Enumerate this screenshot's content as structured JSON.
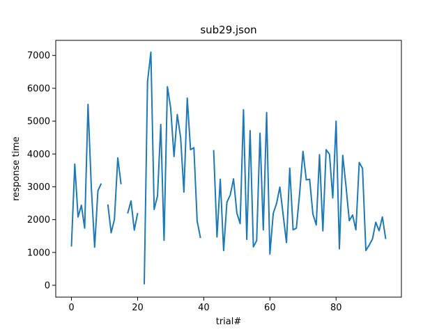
{
  "chart_data": {
    "type": "line",
    "title": "sub29.json",
    "xlabel": "trial#",
    "ylabel": "response time",
    "xlim": [
      -4.75,
      99.75
    ],
    "ylim": [
      -360,
      7460
    ],
    "xticks": [
      0,
      20,
      40,
      60,
      80
    ],
    "yticks": [
      0,
      1000,
      2000,
      3000,
      4000,
      5000,
      6000,
      7000
    ],
    "grid": false,
    "line_color": "#1f77b4",
    "series": [
      {
        "values": [
          1180,
          3690,
          2080,
          2440,
          1740,
          5510,
          3000,
          1160,
          2880,
          3100,
          null,
          2460,
          1600,
          2010,
          3880,
          3080,
          null,
          2190,
          2570,
          1680,
          2200,
          null,
          30,
          6200,
          7100,
          2310,
          2720,
          4900,
          1370,
          6050,
          5400,
          3920,
          5200,
          4500,
          2840,
          5700,
          4130,
          4190,
          1960,
          1440,
          null,
          null,
          null,
          4120,
          1470,
          3230,
          1060,
          2530,
          2750,
          3240,
          2200,
          1880,
          5350,
          1400,
          4710,
          1170,
          1360,
          4630,
          1690,
          5260,
          950,
          2190,
          2490,
          2990,
          2150,
          1300,
          3570,
          1690,
          1740,
          2810,
          4080,
          3210,
          3230,
          2170,
          1840,
          3980,
          1660,
          4130,
          3990,
          2660,
          5000,
          1110,
          3960,
          3020,
          1970,
          2140,
          1690,
          3740,
          3560,
          1060,
          1220,
          1410,
          1920,
          1660,
          2080,
          1410
        ]
      }
    ]
  }
}
